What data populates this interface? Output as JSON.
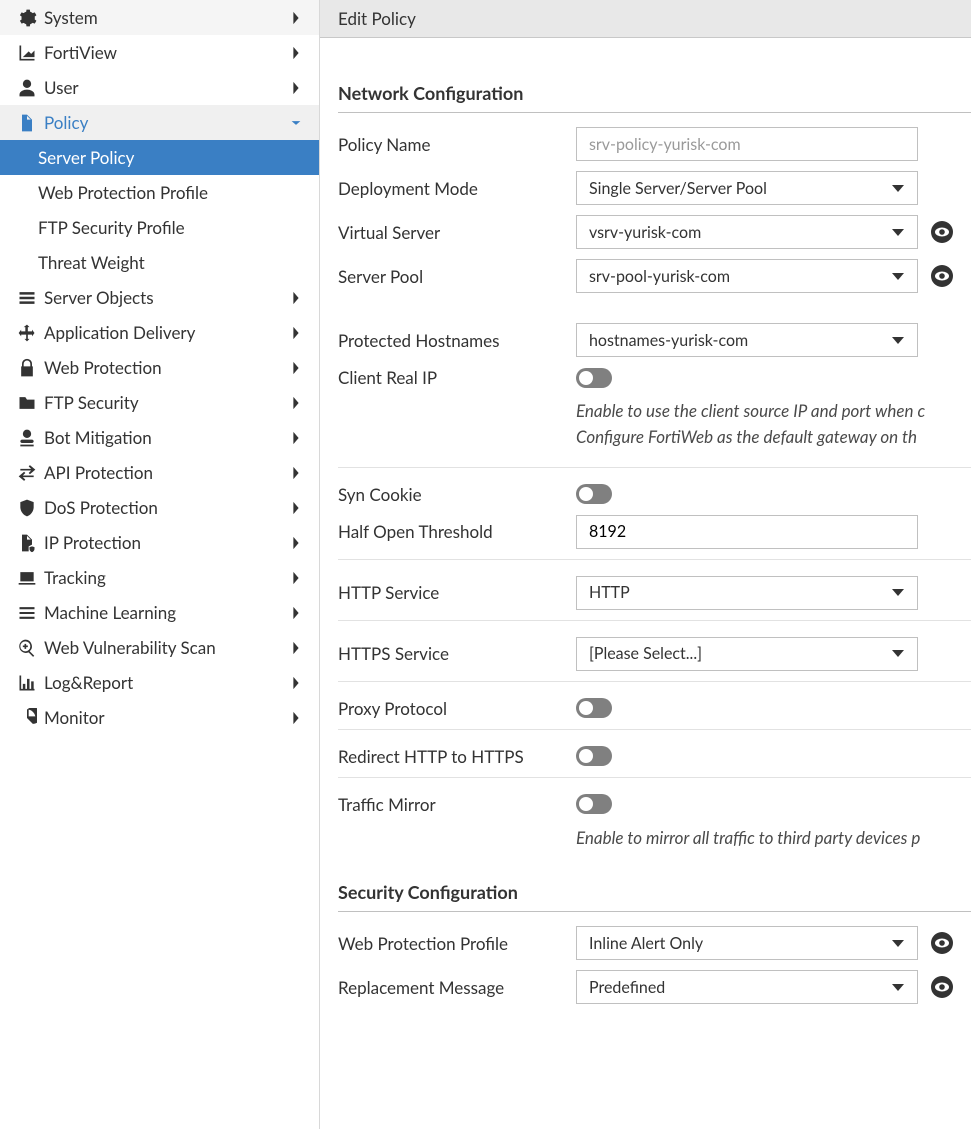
{
  "colors": {
    "accent": "#3a7fc4",
    "border": "#c0c0c0",
    "headerBg": "#e8e8e8",
    "toggleOff": "#808080"
  },
  "sidebar": {
    "items": [
      {
        "key": "system",
        "label": "System",
        "icon": "gear",
        "expanded": false,
        "active": false
      },
      {
        "key": "fortiview",
        "label": "FortiView",
        "icon": "area-chart",
        "expanded": false,
        "active": false
      },
      {
        "key": "user",
        "label": "User",
        "icon": "user",
        "expanded": false,
        "active": false
      },
      {
        "key": "policy",
        "label": "Policy",
        "icon": "document",
        "expanded": true,
        "active": true,
        "children": [
          {
            "key": "server-policy",
            "label": "Server Policy",
            "selected": true
          },
          {
            "key": "web-prot",
            "label": "Web Protection Profile",
            "selected": false
          },
          {
            "key": "ftp-sec",
            "label": "FTP Security Profile",
            "selected": false
          },
          {
            "key": "threat",
            "label": "Threat Weight",
            "selected": false
          }
        ]
      },
      {
        "key": "server-objects",
        "label": "Server Objects",
        "icon": "stack",
        "expanded": false
      },
      {
        "key": "app-delivery",
        "label": "Application Delivery",
        "icon": "move",
        "expanded": false
      },
      {
        "key": "web-protection",
        "label": "Web Protection",
        "icon": "lock",
        "expanded": false
      },
      {
        "key": "ftp-security",
        "label": "FTP Security",
        "icon": "folder",
        "expanded": false
      },
      {
        "key": "bot",
        "label": "Bot Mitigation",
        "icon": "bot",
        "expanded": false
      },
      {
        "key": "api",
        "label": "API Protection",
        "icon": "exchange",
        "expanded": false
      },
      {
        "key": "dos",
        "label": "DoS Protection",
        "icon": "shield",
        "expanded": false
      },
      {
        "key": "ip",
        "label": "IP Protection",
        "icon": "doc-shield",
        "expanded": false
      },
      {
        "key": "tracking",
        "label": "Tracking",
        "icon": "laptop",
        "expanded": false
      },
      {
        "key": "ml",
        "label": "Machine Learning",
        "icon": "menu",
        "expanded": false
      },
      {
        "key": "vuln",
        "label": "Web Vulnerability Scan",
        "icon": "search-plus",
        "expanded": false
      },
      {
        "key": "log",
        "label": "Log&Report",
        "icon": "bar-chart",
        "expanded": false
      },
      {
        "key": "monitor",
        "label": "Monitor",
        "icon": "pie",
        "expanded": false
      }
    ]
  },
  "page": {
    "title": "Edit Policy",
    "section1": "Network Configuration",
    "section2": "Security Configuration",
    "labels": {
      "policyName": "Policy Name",
      "deploymentMode": "Deployment Mode",
      "virtualServer": "Virtual Server",
      "serverPool": "Server Pool",
      "protectedHostnames": "Protected Hostnames",
      "clientRealIp": "Client Real IP",
      "synCookie": "Syn Cookie",
      "halfOpenThreshold": "Half Open Threshold",
      "httpService": "HTTP Service",
      "httpsService": "HTTPS Service",
      "proxyProtocol": "Proxy Protocol",
      "redirectHttp": "Redirect HTTP to HTTPS",
      "trafficMirror": "Traffic Mirror",
      "webProtProfile": "Web Protection Profile",
      "replacementMsg": "Replacement Message"
    },
    "values": {
      "policyNamePlaceholder": "srv-policy-yurisk-com",
      "deploymentMode": "Single Server/Server Pool",
      "virtualServer": "vsrv-yurisk-com",
      "serverPool": "srv-pool-yurisk-com",
      "protectedHostnames": "hostnames-yurisk-com",
      "halfOpenThreshold": "8192",
      "httpService": "HTTP",
      "httpsService": "[Please Select...]",
      "webProtProfile": "Inline Alert Only",
      "replacementMsg": "Predefined"
    },
    "help": {
      "clientRealIp": "Enable to use the client source IP and port when connecting to the server. Configure FortiWeb as the default gateway on the server.",
      "clientRealIpLine1": "Enable to use the client source IP and port when c",
      "clientRealIpLine2": "Configure FortiWeb as the default gateway on th",
      "trafficMirror": "Enable to mirror all traffic to third party devices p"
    }
  }
}
